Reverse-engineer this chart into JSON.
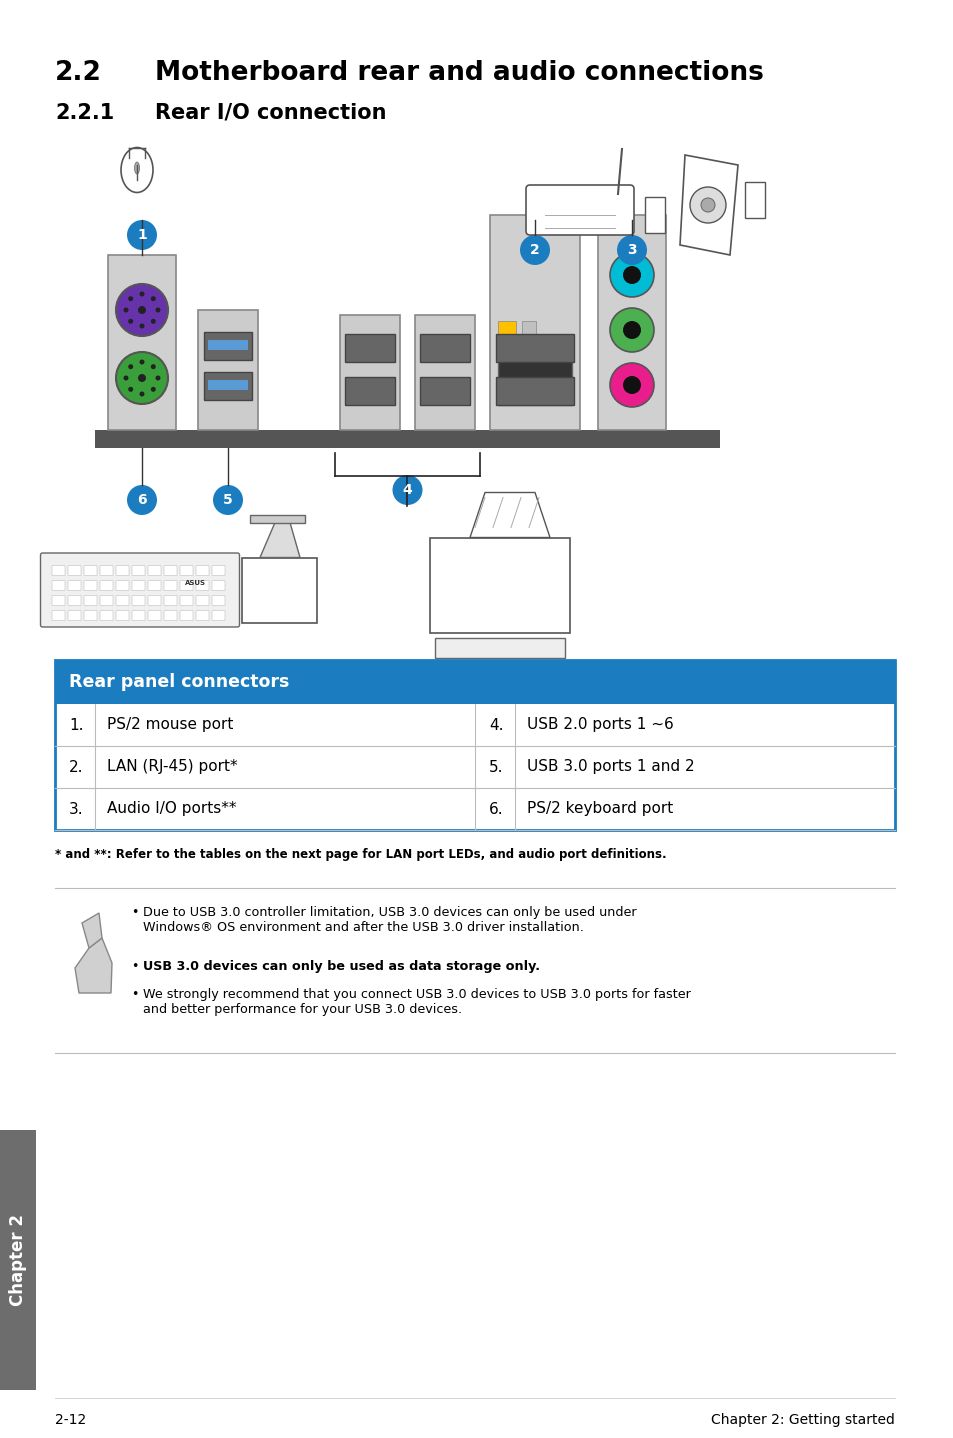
{
  "title_section": "2.2",
  "title_text": "Motherboard rear and audio connections",
  "subtitle_section": "2.2.1",
  "subtitle_text": "Rear I/O connection",
  "table_header": "Rear panel connectors",
  "table_header_bg": "#1b7dc0",
  "table_header_color": "#ffffff",
  "table_rows": [
    [
      "1.",
      "PS/2 mouse port",
      "4.",
      "USB 2.0 ports 1 ~6"
    ],
    [
      "2.",
      "LAN (RJ-45) port*",
      "5.",
      "USB 3.0 ports 1 and 2"
    ],
    [
      "3.",
      "Audio I/O ports**",
      "6.",
      "PS/2 keyboard port"
    ]
  ],
  "table_border_color": "#1b7dc0",
  "table_divider_color": "#bbbbbb",
  "footnote": "* and **: Refer to the tables on the next page for LAN port LEDs, and audio port definitions.",
  "note_bullet1_line1": "Due to USB 3.0 controller limitation, USB 3.0 devices can only be used under",
  "note_bullet1_line2": "Windows® OS environment and after the USB 3.0 driver installation.",
  "note_bullet2": "USB 3.0 devices can only be used as data storage only.",
  "note_bullet3_line1": "We strongly recommend that you connect USB 3.0 devices to USB 3.0 ports for faster",
  "note_bullet3_line2": "and better performance for your USB 3.0 devices.",
  "footer_left": "2-12",
  "footer_right": "Chapter 2: Getting started",
  "chapter_label": "Chapter 2",
  "bg_color": "#ffffff",
  "text_color": "#000000",
  "circle_color": "#1b7dc0",
  "circle_text_color": "#ffffff",
  "panel_bar_color": "#555555",
  "port_gray": "#c8c8c8",
  "port_dark": "#888888",
  "usb_blue": "#5b9bd5",
  "usb_dark": "#444455",
  "usb3_blue": "#2244aa",
  "audio_cyan": "#00bcd4",
  "audio_green": "#4caf50",
  "audio_pink": "#e91e8c",
  "ps2_green": "#3a9e3a",
  "ps2_purple": "#6633aa"
}
